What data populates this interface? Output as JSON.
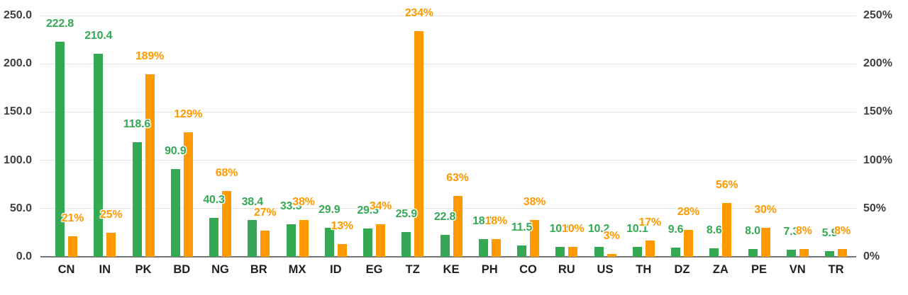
{
  "chart_data": {
    "type": "bar",
    "title": "",
    "categories": [
      "CN",
      "IN",
      "PK",
      "BD",
      "NG",
      "BR",
      "MX",
      "ID",
      "EG",
      "TZ",
      "KE",
      "PH",
      "CO",
      "RU",
      "US",
      "TH",
      "DZ",
      "ZA",
      "PE",
      "VN",
      "TR"
    ],
    "series": [
      {
        "name": "green-values",
        "axis": "left",
        "color": "#34a853",
        "values": [
          222.8,
          210.4,
          118.6,
          90.9,
          40.3,
          38.4,
          33.5,
          29.9,
          29.5,
          25.9,
          22.8,
          18.1,
          11.5,
          10.4,
          10.2,
          10.1,
          9.6,
          8.6,
          8.0,
          7.3,
          5.9
        ],
        "labels": [
          "222.8",
          "210.4",
          "118.6",
          "90.9",
          "40.3",
          "38.4",
          "33.5",
          "29.9",
          "29.5",
          "25.9",
          "22.8",
          "18.1",
          "11.5",
          "10.4",
          "10.2",
          "10.1",
          "9.6",
          "8.6",
          "8.0",
          "7.3",
          "5.9"
        ]
      },
      {
        "name": "orange-percent",
        "axis": "right",
        "color": "#ff9900",
        "values": [
          21,
          25,
          189,
          129,
          68,
          27,
          38,
          13,
          34,
          234,
          63,
          18,
          38,
          10,
          3,
          17,
          28,
          56,
          30,
          8,
          8
        ],
        "labels": [
          "21%",
          "25%",
          "189%",
          "129%",
          "68%",
          "27%",
          "38%",
          "13%",
          "34%",
          "234%",
          "63%",
          "18%",
          "38%",
          "10%",
          "3%",
          "17%",
          "28%",
          "56%",
          "30%",
          "8%",
          "8%"
        ]
      }
    ],
    "left_axis": {
      "ticks": [
        {
          "value": 250,
          "label": "250.0"
        },
        {
          "value": 200,
          "label": "200.0"
        },
        {
          "value": 150,
          "label": "150.0"
        },
        {
          "value": 100,
          "label": "100.0"
        },
        {
          "value": 50,
          "label": "50.0"
        },
        {
          "value": 0,
          "label": "0.0"
        }
      ],
      "range": [
        0,
        250
      ]
    },
    "right_axis": {
      "ticks": [
        {
          "value": 250,
          "label": "250%"
        },
        {
          "value": 200,
          "label": "200%"
        },
        {
          "value": 150,
          "label": "150%"
        },
        {
          "value": 100,
          "label": "100%"
        },
        {
          "value": 50,
          "label": "50%"
        },
        {
          "value": 0,
          "label": "0%"
        }
      ],
      "range": [
        0,
        250
      ]
    },
    "grid": true,
    "legend_position": "none"
  },
  "styles": {
    "background": "#ffffff",
    "grid_color": "#e3e3e3",
    "baseline_color": "#757575",
    "axis_text_color": "#3c4043",
    "category_text_color": "#1f1f1f"
  }
}
